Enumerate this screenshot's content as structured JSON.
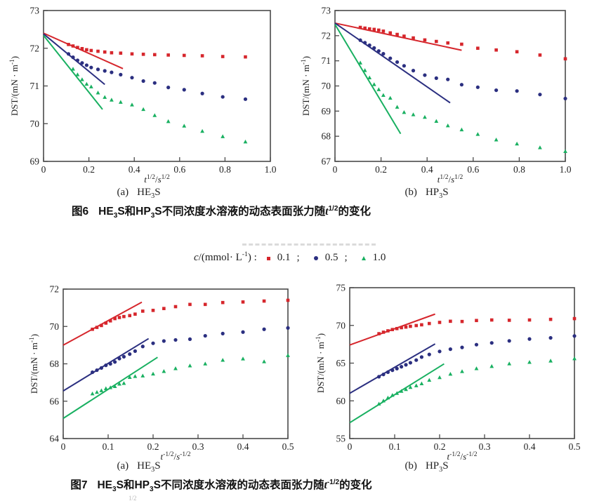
{
  "colors": {
    "red": "#d6262c",
    "blue": "#2b2f80",
    "green": "#19b061",
    "axis": "#4a4a4a",
    "text": "#1f1f1f",
    "artifact": "#cfcfcf"
  },
  "legend": {
    "var": "c",
    "unit_pre": "/(mmol· L",
    "unit_sup": "-1",
    "unit_post": ") :",
    "items": [
      {
        "label": "0.1",
        "sep": ";",
        "marker": "square",
        "color_key": "red"
      },
      {
        "label": "0.5",
        "sep": ";",
        "marker": "circle",
        "color_key": "blue"
      },
      {
        "label": "1.0",
        "sep": "",
        "marker": "triangle",
        "color_key": "green"
      }
    ]
  },
  "figure6": {
    "panel_a": {
      "tag": "(a)",
      "pre": "HE",
      "sub": "3",
      "post": "S"
    },
    "panel_b": {
      "tag": "(b)",
      "pre": "HP",
      "sub": "3",
      "post": "S"
    },
    "caption": {
      "fig_no": "图6",
      "pre": "HE",
      "sub1": "3",
      "mid": "S和HP",
      "sub2": "3",
      "body": "S不同浓度水溶液的动态表面张力随",
      "var": "t",
      "sup": "1/2",
      "tail": "的变化"
    }
  },
  "figure7": {
    "panel_a": {
      "tag": "(a)",
      "pre": "HE",
      "sub": "3",
      "post": "S"
    },
    "panel_b": {
      "tag": "(b)",
      "pre": "HP",
      "sub": "3",
      "post": "S"
    },
    "caption": {
      "fig_no": "图7",
      "pre": "HE",
      "sub1": "3",
      "mid": "S和HP",
      "sub2": "3",
      "body": "S不同浓度水溶液的动态表面张力随",
      "var": "t",
      "sup": "-1/2",
      "tail": "的变化"
    }
  },
  "fragment": "1/2",
  "chart_data": [
    {
      "id": "fig6a",
      "panel": "(a)",
      "sample": "HE3S",
      "type": "scatter",
      "xlabel": "t^1/2 / s^1/2",
      "ylabel": "DST/(mN · m^-1)",
      "xlabel_parts": [
        [
          "t",
          "i"
        ],
        [
          "1/2",
          "sup"
        ],
        [
          "/",
          ""
        ],
        [
          "s",
          "i"
        ],
        [
          "1/2",
          "sup"
        ]
      ],
      "ylabel_parts": [
        [
          "DST/(mN · m",
          ""
        ],
        [
          "-1",
          "sup"
        ],
        [
          ")",
          ""
        ]
      ],
      "xlim": [
        0,
        1.0
      ],
      "ylim": [
        69,
        73
      ],
      "xtick_values": [
        0,
        0.2,
        0.4,
        0.6,
        0.8,
        1.0
      ],
      "xtick_labels": [
        "0",
        "0.2",
        "0.4",
        "0.6",
        "0.8",
        "1.0"
      ],
      "ytick_values": [
        69,
        70,
        71,
        72,
        73
      ],
      "ytick_labels": [
        "69",
        "70",
        "71",
        "72",
        "73"
      ],
      "series": [
        {
          "name": "0.1 mmol/L",
          "marker": "square",
          "color_key": "red",
          "x": [
            0.11,
            0.13,
            0.15,
            0.17,
            0.19,
            0.21,
            0.24,
            0.27,
            0.3,
            0.34,
            0.39,
            0.44,
            0.49,
            0.55,
            0.62,
            0.7,
            0.79,
            0.89
          ],
          "y": [
            72.1,
            72.06,
            72.02,
            71.99,
            71.96,
            71.94,
            71.92,
            71.9,
            71.88,
            71.87,
            71.85,
            71.84,
            71.83,
            71.82,
            71.81,
            71.8,
            71.78,
            71.77
          ]
        },
        {
          "name": "0.5 mmol/L",
          "marker": "circle",
          "color_key": "blue",
          "x": [
            0.11,
            0.13,
            0.15,
            0.17,
            0.19,
            0.21,
            0.24,
            0.27,
            0.3,
            0.34,
            0.39,
            0.44,
            0.49,
            0.55,
            0.62,
            0.7,
            0.79,
            0.89
          ],
          "y": [
            71.85,
            71.76,
            71.68,
            71.61,
            71.55,
            71.49,
            71.44,
            71.4,
            71.36,
            71.3,
            71.22,
            71.13,
            71.08,
            70.96,
            70.9,
            70.8,
            70.71,
            70.65
          ]
        },
        {
          "name": "1.0 mmol/L",
          "marker": "triangle",
          "color_key": "green",
          "x": [
            0.13,
            0.15,
            0.17,
            0.19,
            0.21,
            0.24,
            0.27,
            0.3,
            0.34,
            0.39,
            0.44,
            0.49,
            0.55,
            0.62,
            0.7,
            0.79,
            0.89
          ],
          "y": [
            71.45,
            71.3,
            71.17,
            71.05,
            70.98,
            70.82,
            70.7,
            70.63,
            70.57,
            70.5,
            70.38,
            70.22,
            70.06,
            69.94,
            69.8,
            69.66,
            69.52
          ]
        }
      ],
      "fit_lines": [
        {
          "color_key": "red",
          "x": [
            0,
            0.35
          ],
          "y": [
            72.4,
            71.46
          ]
        },
        {
          "color_key": "blue",
          "x": [
            0,
            0.27
          ],
          "y": [
            72.38,
            71.04
          ]
        },
        {
          "color_key": "green",
          "x": [
            0,
            0.26
          ],
          "y": [
            72.34,
            70.38
          ]
        }
      ]
    },
    {
      "id": "fig6b",
      "panel": "(b)",
      "sample": "HP3S",
      "type": "scatter",
      "xlabel": "t^1/2 / s^1/2",
      "ylabel": "DST/(mN · m^-1)",
      "xlabel_parts": [
        [
          "t",
          "i"
        ],
        [
          "1/2",
          "sup"
        ],
        [
          "/",
          ""
        ],
        [
          "s",
          "i"
        ],
        [
          "1/2",
          "sup"
        ]
      ],
      "ylabel_parts": [
        [
          "DST/(mN · m",
          ""
        ],
        [
          "-1",
          "sup"
        ],
        [
          ")",
          ""
        ]
      ],
      "xlim": [
        0,
        1.0
      ],
      "ylim": [
        67,
        73
      ],
      "xtick_values": [
        0,
        0.2,
        0.4,
        0.6,
        0.8,
        1.0
      ],
      "xtick_labels": [
        "0",
        "0.2",
        "0.4",
        "0.6",
        "0.8",
        "1.0"
      ],
      "ytick_values": [
        67,
        68,
        69,
        70,
        71,
        72,
        73
      ],
      "ytick_labels": [
        "67",
        "68",
        "69",
        "70",
        "71",
        "72",
        "73"
      ],
      "series": [
        {
          "name": "0.1 mmol/L",
          "marker": "square",
          "color_key": "red",
          "x": [
            0.11,
            0.13,
            0.15,
            0.17,
            0.19,
            0.21,
            0.24,
            0.27,
            0.3,
            0.34,
            0.39,
            0.44,
            0.49,
            0.55,
            0.62,
            0.7,
            0.79,
            0.89,
            1.0
          ],
          "y": [
            72.33,
            72.3,
            72.27,
            72.25,
            72.22,
            72.18,
            72.11,
            72.05,
            71.98,
            71.91,
            71.83,
            71.77,
            71.71,
            71.66,
            71.5,
            71.43,
            71.36,
            71.23,
            71.08
          ]
        },
        {
          "name": "0.5 mmol/L",
          "marker": "circle",
          "color_key": "blue",
          "x": [
            0.11,
            0.13,
            0.15,
            0.17,
            0.19,
            0.21,
            0.24,
            0.27,
            0.3,
            0.34,
            0.39,
            0.44,
            0.49,
            0.55,
            0.62,
            0.7,
            0.79,
            0.89,
            1.0
          ],
          "y": [
            71.82,
            71.72,
            71.62,
            71.51,
            71.39,
            71.28,
            71.1,
            70.95,
            70.8,
            70.61,
            70.43,
            70.31,
            70.26,
            70.05,
            69.95,
            69.83,
            69.8,
            69.66,
            69.5
          ]
        },
        {
          "name": "1.0 mmol/L",
          "marker": "triangle",
          "color_key": "green",
          "x": [
            0.11,
            0.13,
            0.15,
            0.17,
            0.19,
            0.21,
            0.24,
            0.27,
            0.3,
            0.34,
            0.39,
            0.44,
            0.49,
            0.55,
            0.62,
            0.7,
            0.79,
            0.89,
            1.0
          ],
          "y": [
            70.92,
            70.62,
            70.33,
            70.06,
            69.86,
            69.63,
            69.52,
            69.16,
            68.95,
            68.86,
            68.76,
            68.6,
            68.42,
            68.26,
            68.08,
            67.86,
            67.7,
            67.55,
            67.4
          ]
        }
      ],
      "fit_lines": [
        {
          "color_key": "red",
          "x": [
            0,
            0.55
          ],
          "y": [
            72.5,
            71.42
          ]
        },
        {
          "color_key": "blue",
          "x": [
            0,
            0.5
          ],
          "y": [
            72.5,
            69.33
          ]
        },
        {
          "color_key": "green",
          "x": [
            0,
            0.285
          ],
          "y": [
            72.45,
            68.1
          ]
        }
      ]
    },
    {
      "id": "fig7a",
      "panel": "(a)",
      "sample": "HE3S",
      "type": "scatter",
      "xlabel": "t^-1/2 / s^-1/2",
      "ylabel": "DST/(mN · m^-1)",
      "xlabel_parts": [
        [
          "t",
          "i"
        ],
        [
          "-1/2",
          "sup"
        ],
        [
          "/",
          ""
        ],
        [
          "s",
          "i"
        ],
        [
          "-1/2",
          "sup"
        ]
      ],
      "ylabel_parts": [
        [
          "DST/(mN · m",
          ""
        ],
        [
          "-1",
          "sup"
        ],
        [
          ")",
          ""
        ]
      ],
      "xlim": [
        0,
        0.5
      ],
      "ylim": [
        64,
        72
      ],
      "xtick_values": [
        0,
        0.1,
        0.2,
        0.3,
        0.4,
        0.5
      ],
      "xtick_labels": [
        "0",
        "0.1",
        "0.2",
        "0.3",
        "0.4",
        "0.5"
      ],
      "ytick_values": [
        64,
        66,
        68,
        70,
        72
      ],
      "ytick_labels": [
        "64",
        "66",
        "68",
        "70",
        "72"
      ],
      "series": [
        {
          "name": "0.1 mmol/L",
          "marker": "square",
          "color_key": "red",
          "x": [
            0.065,
            0.075,
            0.085,
            0.095,
            0.105,
            0.115,
            0.125,
            0.135,
            0.148,
            0.16,
            0.177,
            0.2,
            0.224,
            0.25,
            0.282,
            0.316,
            0.355,
            0.4,
            0.447,
            0.5
          ],
          "y": [
            69.85,
            69.95,
            70.05,
            70.18,
            70.3,
            70.42,
            70.48,
            70.53,
            70.58,
            70.66,
            70.82,
            70.86,
            70.96,
            71.06,
            71.18,
            71.18,
            71.28,
            71.31,
            71.36,
            71.4
          ]
        },
        {
          "name": "0.5 mmol/L",
          "marker": "circle",
          "color_key": "blue",
          "x": [
            0.065,
            0.075,
            0.085,
            0.095,
            0.105,
            0.115,
            0.125,
            0.135,
            0.148,
            0.16,
            0.177,
            0.2,
            0.224,
            0.25,
            0.282,
            0.316,
            0.355,
            0.4,
            0.447,
            0.5
          ],
          "y": [
            67.55,
            67.66,
            67.78,
            67.92,
            68.0,
            68.1,
            68.28,
            68.38,
            68.52,
            68.68,
            68.93,
            69.1,
            69.22,
            69.28,
            69.32,
            69.5,
            69.62,
            69.7,
            69.85,
            69.92
          ]
        },
        {
          "name": "1.0 mmol/L",
          "marker": "triangle",
          "color_key": "green",
          "x": [
            0.065,
            0.075,
            0.085,
            0.095,
            0.105,
            0.115,
            0.125,
            0.135,
            0.148,
            0.16,
            0.177,
            0.2,
            0.224,
            0.25,
            0.282,
            0.316,
            0.355,
            0.4,
            0.447,
            0.5
          ],
          "y": [
            66.4,
            66.48,
            66.57,
            66.68,
            66.73,
            66.79,
            66.92,
            66.96,
            67.28,
            67.33,
            67.36,
            67.46,
            67.6,
            67.75,
            67.9,
            68.0,
            68.2,
            68.27,
            68.12,
            68.45
          ]
        }
      ],
      "fit_lines": [
        {
          "color_key": "red",
          "x": [
            0,
            0.175
          ],
          "y": [
            69.0,
            71.3
          ]
        },
        {
          "color_key": "blue",
          "x": [
            0,
            0.19
          ],
          "y": [
            66.55,
            69.35
          ]
        },
        {
          "color_key": "green",
          "x": [
            0,
            0.21
          ],
          "y": [
            65.08,
            68.35
          ]
        }
      ]
    },
    {
      "id": "fig7b",
      "panel": "(b)",
      "sample": "HP3S",
      "type": "scatter",
      "xlabel": "t^-1/2 / s^-1/2",
      "ylabel": "DST/(mN · m^-1)",
      "xlabel_parts": [
        [
          "t",
          "i"
        ],
        [
          "-1/2",
          "sup"
        ],
        [
          "/",
          ""
        ],
        [
          "s",
          "i"
        ],
        [
          "-1/2",
          "sup"
        ]
      ],
      "ylabel_parts": [
        [
          "DST/(mN · m",
          ""
        ],
        [
          "-1",
          "sup"
        ],
        [
          ")",
          ""
        ]
      ],
      "xlim": [
        0,
        0.5
      ],
      "ylim": [
        55,
        75
      ],
      "xtick_values": [
        0,
        0.1,
        0.2,
        0.3,
        0.4,
        0.5
      ],
      "xtick_labels": [
        "0",
        "0.1",
        "0.2",
        "0.3",
        "0.4",
        "0.5"
      ],
      "ytick_values": [
        55,
        60,
        65,
        70,
        75
      ],
      "ytick_labels": [
        "55",
        "60",
        "65",
        "70",
        "75"
      ],
      "series": [
        {
          "name": "0.1 mmol/L",
          "marker": "square",
          "color_key": "red",
          "x": [
            0.065,
            0.075,
            0.085,
            0.095,
            0.105,
            0.115,
            0.125,
            0.135,
            0.148,
            0.16,
            0.177,
            0.2,
            0.224,
            0.25,
            0.282,
            0.316,
            0.355,
            0.4,
            0.447,
            0.5
          ],
          "y": [
            68.9,
            69.1,
            69.28,
            69.45,
            69.58,
            69.7,
            69.78,
            69.88,
            69.98,
            70.08,
            70.25,
            70.4,
            70.55,
            70.52,
            70.65,
            70.72,
            70.68,
            70.72,
            70.8,
            70.9
          ]
        },
        {
          "name": "0.5 mmol/L",
          "marker": "circle",
          "color_key": "blue",
          "x": [
            0.065,
            0.075,
            0.085,
            0.095,
            0.105,
            0.115,
            0.125,
            0.135,
            0.148,
            0.16,
            0.177,
            0.2,
            0.224,
            0.25,
            0.282,
            0.316,
            0.355,
            0.4,
            0.447,
            0.5
          ],
          "y": [
            63.2,
            63.5,
            63.8,
            64.05,
            64.28,
            64.52,
            64.78,
            65.05,
            65.4,
            65.8,
            66.15,
            66.55,
            66.85,
            67.08,
            67.45,
            67.68,
            67.95,
            68.2,
            68.35,
            68.6
          ]
        },
        {
          "name": "1.0 mmol/L",
          "marker": "triangle",
          "color_key": "green",
          "x": [
            0.065,
            0.075,
            0.085,
            0.095,
            0.105,
            0.115,
            0.125,
            0.135,
            0.148,
            0.16,
            0.177,
            0.2,
            0.224,
            0.25,
            0.282,
            0.316,
            0.355,
            0.4,
            0.447,
            0.5
          ],
          "y": [
            59.6,
            60.0,
            60.4,
            60.75,
            61.0,
            61.28,
            61.52,
            61.8,
            62.02,
            62.28,
            62.75,
            63.1,
            63.55,
            63.9,
            64.28,
            64.58,
            64.92,
            65.12,
            65.3,
            65.6
          ]
        }
      ],
      "fit_lines": [
        {
          "color_key": "red",
          "x": [
            0,
            0.19
          ],
          "y": [
            67.4,
            71.5
          ]
        },
        {
          "color_key": "blue",
          "x": [
            0,
            0.19
          ],
          "y": [
            61.0,
            67.55
          ]
        },
        {
          "color_key": "green",
          "x": [
            0,
            0.21
          ],
          "y": [
            57.1,
            64.9
          ]
        }
      ]
    }
  ]
}
